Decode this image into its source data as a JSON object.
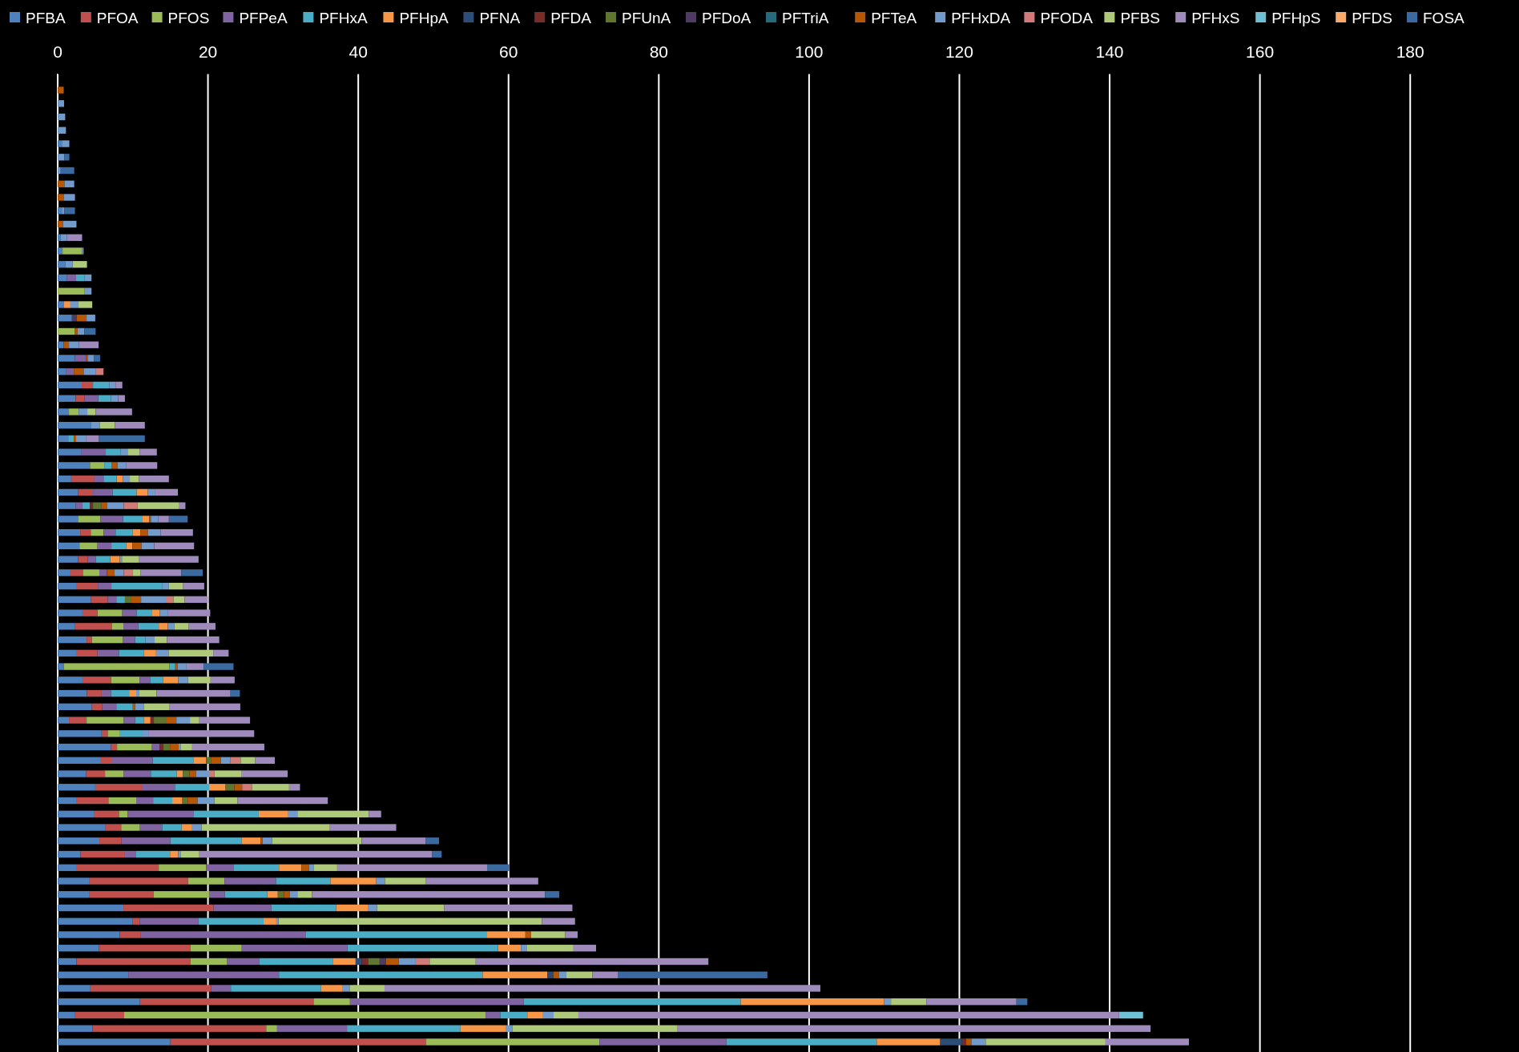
{
  "chart_data": {
    "type": "bar",
    "orientation": "horizontal",
    "stacked": true,
    "grid": "x",
    "legend": "top",
    "tick_labels": "x",
    "categories": [
      null,
      null,
      null,
      null,
      null,
      null,
      null,
      null,
      null,
      null,
      null,
      null,
      null,
      null,
      null,
      null,
      null,
      null,
      null,
      null,
      null,
      null,
      null,
      null,
      null,
      null,
      null,
      null,
      null,
      null,
      null,
      null,
      null,
      null,
      null,
      null,
      null,
      null,
      null,
      null,
      null,
      null,
      null,
      null,
      null,
      null,
      null,
      null,
      null,
      null,
      null,
      null,
      null,
      null,
      null,
      null,
      null,
      null,
      null,
      null,
      null,
      null,
      null,
      null,
      null,
      null,
      null,
      null,
      null,
      null,
      null,
      null
    ],
    "xlim": [
      0,
      190
    ],
    "xticks": [
      0,
      20,
      40,
      60,
      80,
      100,
      120,
      140,
      160,
      180
    ],
    "series": [
      {
        "name": "PFBA",
        "color": "#4f81bd",
        "values": [
          null,
          null,
          null,
          null,
          0.55,
          null,
          null,
          null,
          null,
          0.55,
          null,
          0.4,
          0.65,
          1.0,
          1.2,
          null,
          0.85,
          1.9,
          null,
          0.8,
          2.3,
          1.15,
          3.2,
          2.4,
          1.5,
          4.4,
          1.4,
          3.1,
          4.3,
          1.8,
          2.7,
          2.4,
          2.7,
          3.0,
          2.9,
          2.7,
          1.7,
          2.45,
          4.4,
          3.3,
          2.25,
          3.85,
          2.45,
          0.8,
          3.3,
          3.9,
          4.55,
          1.5,
          5.85,
          7.1,
          5.65,
          3.8,
          5.0,
          2.55,
          4.8,
          6.3,
          5.55,
          3.05,
          2.45,
          4.25,
          4.25,
          8.75,
          10.0,
          8.25,
          5.5,
          2.5,
          9.4,
          4.35,
          10.95,
          2.25,
          4.65,
          15.0
        ]
      },
      {
        "name": "PFOA",
        "color": "#c0504d",
        "values": [
          null,
          null,
          null,
          null,
          null,
          null,
          null,
          null,
          null,
          null,
          null,
          null,
          null,
          null,
          null,
          null,
          null,
          null,
          null,
          null,
          null,
          null,
          1.5,
          1.2,
          null,
          null,
          null,
          null,
          null,
          3.1,
          2.0,
          null,
          null,
          1.4,
          null,
          1.3,
          1.65,
          2.9,
          2.25,
          2.0,
          5.0,
          0.7,
          2.8,
          null,
          3.8,
          1.95,
          1.35,
          2.35,
          0.8,
          0.8,
          1.6,
          2.5,
          6.2,
          4.2,
          3.35,
          2.15,
          2.95,
          5.9,
          11.0,
          13.1,
          8.5,
          12.0,
          0.9,
          2.75,
          12.15,
          15.15,
          null,
          16.05,
          23.1,
          6.6,
          23.1,
          34.05
        ]
      },
      {
        "name": "PFOS",
        "color": "#9bbb59",
        "values": [
          null,
          null,
          null,
          null,
          null,
          null,
          null,
          null,
          null,
          null,
          null,
          null,
          2.6,
          null,
          null,
          3.6,
          null,
          null,
          2.3,
          null,
          null,
          null,
          null,
          null,
          1.3,
          null,
          null,
          null,
          1.9,
          null,
          null,
          null,
          3.0,
          1.7,
          2.4,
          null,
          2.2,
          null,
          null,
          3.3,
          1.5,
          4.1,
          null,
          14.05,
          3.8,
          null,
          null,
          4.95,
          1.65,
          4.65,
          null,
          2.5,
          null,
          3.7,
          1.15,
          2.5,
          null,
          null,
          6.3,
          4.85,
          7.4,
          null,
          null,
          null,
          6.85,
          4.85,
          null,
          null,
          4.85,
          48.1,
          1.45,
          23.05
        ]
      },
      {
        "name": "PFPeA",
        "color": "#8064a2",
        "values": [
          null,
          null,
          null,
          null,
          null,
          null,
          null,
          null,
          null,
          null,
          null,
          null,
          null,
          null,
          1.25,
          null,
          null,
          null,
          null,
          null,
          1.5,
          1.0,
          null,
          1.8,
          null,
          null,
          null,
          3.3,
          null,
          1.2,
          2.6,
          0.9,
          3.0,
          1.6,
          1.85,
          1.1,
          1.0,
          1.8,
          1.15,
          1.9,
          2.0,
          1.65,
          2.9,
          null,
          1.4,
          1.25,
          1.9,
          1.5,
          null,
          1.0,
          5.4,
          3.6,
          4.4,
          2.25,
          8.75,
          2.95,
          6.5,
          1.5,
          3.7,
          6.85,
          2.1,
          7.7,
          7.8,
          22.05,
          14.05,
          4.3,
          20.05,
          2.65,
          23.1,
          1.95,
          9.3,
          16.9
        ]
      },
      {
        "name": "PFHxA",
        "color": "#4bacc6",
        "values": [
          null,
          null,
          null,
          null,
          null,
          null,
          null,
          null,
          null,
          null,
          null,
          null,
          null,
          null,
          1.15,
          null,
          null,
          null,
          null,
          null,
          null,
          null,
          2.15,
          1.7,
          null,
          null,
          0.75,
          2.0,
          0.95,
          1.75,
          3.2,
          1.0,
          2.6,
          2.3,
          2.0,
          1.9,
          null,
          6.8,
          1.15,
          2.0,
          2.7,
          1.4,
          3.3,
          0.8,
          1.75,
          2.4,
          2.2,
          1.15,
          3.0,
          null,
          5.4,
          3.45,
          4.55,
          2.55,
          8.7,
          2.6,
          9.5,
          4.5,
          6.0,
          7.25,
          5.65,
          8.6,
          8.7,
          24.1,
          20.05,
          9.8,
          27.1,
          12.0,
          28.9,
          3.6,
          15.1,
          20.0
        ]
      },
      {
        "name": "PFHpA",
        "color": "#f79646",
        "values": [
          null,
          null,
          null,
          null,
          null,
          null,
          null,
          null,
          null,
          null,
          null,
          null,
          null,
          null,
          null,
          null,
          0.85,
          null,
          null,
          null,
          null,
          null,
          null,
          null,
          null,
          null,
          null,
          null,
          null,
          0.85,
          1.5,
          null,
          0.9,
          1.0,
          0.8,
          1.25,
          null,
          null,
          null,
          1.1,
          1.2,
          null,
          1.65,
          null,
          2.0,
          0.95,
          null,
          0.9,
          null,
          null,
          1.7,
          0.8,
          2.2,
          1.35,
          3.85,
          1.4,
          2.5,
          1.1,
          3.0,
          6.05,
          1.4,
          4.3,
          1.7,
          5.1,
          3.05,
          3.05,
          8.6,
          2.8,
          19.05,
          2.1,
          6.0,
          8.45
        ]
      },
      {
        "name": "PFNA",
        "color": "#2c4d75",
        "values": [
          null,
          null,
          null,
          null,
          null,
          null,
          null,
          null,
          null,
          null,
          null,
          null,
          null,
          null,
          null,
          null,
          null,
          null,
          null,
          null,
          null,
          null,
          null,
          null,
          null,
          null,
          null,
          null,
          null,
          null,
          null,
          null,
          null,
          null,
          null,
          null,
          null,
          null,
          null,
          null,
          null,
          null,
          null,
          null,
          null,
          null,
          null,
          null,
          null,
          null,
          null,
          null,
          null,
          null,
          null,
          null,
          null,
          null,
          null,
          null,
          null,
          null,
          null,
          null,
          null,
          0.8,
          0.8,
          null,
          null,
          null,
          null,
          2.9
        ]
      },
      {
        "name": "PFDA",
        "color": "#772c2a",
        "values": [
          null,
          null,
          null,
          null,
          null,
          null,
          null,
          null,
          null,
          null,
          null,
          null,
          null,
          null,
          null,
          null,
          null,
          null,
          null,
          null,
          null,
          null,
          null,
          null,
          null,
          null,
          null,
          null,
          null,
          null,
          null,
          0.4,
          null,
          null,
          null,
          null,
          null,
          null,
          null,
          null,
          null,
          null,
          null,
          null,
          null,
          null,
          null,
          0.45,
          null,
          0.5,
          null,
          null,
          null,
          null,
          null,
          null,
          null,
          null,
          null,
          null,
          null,
          null,
          null,
          null,
          null,
          0.85,
          null,
          null,
          null,
          null,
          null,
          0.55
        ]
      },
      {
        "name": "PFUnA",
        "color": "#5f7530",
        "values": [
          null,
          null,
          null,
          null,
          null,
          null,
          null,
          null,
          null,
          null,
          null,
          null,
          null,
          null,
          null,
          null,
          null,
          null,
          null,
          null,
          null,
          null,
          null,
          null,
          null,
          null,
          null,
          null,
          null,
          null,
          null,
          1.15,
          null,
          null,
          null,
          null,
          null,
          null,
          0.85,
          null,
          null,
          null,
          null,
          null,
          null,
          null,
          null,
          1.7,
          null,
          0.9,
          0.7,
          0.9,
          1.15,
          0.7,
          null,
          null,
          null,
          null,
          null,
          null,
          0.8,
          null,
          null,
          null,
          null,
          1.55,
          null,
          null,
          null,
          null,
          null,
          null
        ]
      },
      {
        "name": "PFDoA",
        "color": "#4d3b62",
        "values": [
          null,
          null,
          null,
          null,
          null,
          null,
          null,
          null,
          null,
          null,
          null,
          null,
          null,
          null,
          null,
          null,
          null,
          0.65,
          null,
          null,
          null,
          null,
          null,
          null,
          null,
          null,
          null,
          null,
          null,
          null,
          null,
          null,
          null,
          null,
          null,
          null,
          null,
          null,
          null,
          null,
          null,
          null,
          null,
          null,
          null,
          null,
          null,
          null,
          null,
          null,
          null,
          null,
          null,
          null,
          null,
          null,
          null,
          null,
          null,
          null,
          null,
          null,
          null,
          null,
          null,
          0.85,
          null,
          null,
          null,
          null,
          null,
          null
        ]
      },
      {
        "name": "PFTriA",
        "color": "#276a7c",
        "values": [
          null,
          null,
          null,
          null,
          null,
          null,
          null,
          null,
          null,
          null,
          null,
          null,
          null,
          null,
          null,
          null,
          null,
          null,
          null,
          null,
          null,
          null,
          null,
          null,
          null,
          null,
          null,
          null,
          null,
          null,
          null,
          null,
          null,
          null,
          null,
          null,
          null,
          null,
          null,
          null,
          null,
          null,
          null,
          null,
          null,
          null,
          null,
          null,
          null,
          null,
          null,
          null,
          null,
          null,
          null,
          null,
          null,
          null,
          null,
          null,
          null,
          null,
          null,
          null,
          null,
          null,
          null,
          null,
          null,
          null,
          null,
          null
        ]
      },
      {
        "name": "PFTeA",
        "color": "#b65708",
        "values": [
          0.8,
          null,
          null,
          null,
          null,
          null,
          null,
          0.9,
          0.8,
          null,
          0.7,
          null,
          null,
          null,
          null,
          null,
          null,
          1.3,
          0.35,
          0.7,
          0.25,
          1.3,
          null,
          null,
          null,
          null,
          0.3,
          null,
          0.8,
          null,
          null,
          0.7,
          0.2,
          1.0,
          1.2,
          null,
          1.0,
          null,
          1.3,
          null,
          null,
          null,
          null,
          0.3,
          null,
          null,
          0.3,
          1.3,
          null,
          1.15,
          1.25,
          0.85,
          1.05,
          1.3,
          null,
          null,
          0.25,
          null,
          1.0,
          null,
          0.8,
          null,
          null,
          0.75,
          null,
          1.7,
          0.75,
          null,
          null,
          null,
          null,
          0.7
        ]
      },
      {
        "name": "PFHxDA",
        "color": "#729aca",
        "values": [
          null,
          0.85,
          1.0,
          1.1,
          1.0,
          0.9,
          0.4,
          1.3,
          1.5,
          0.35,
          1.8,
          0.85,
          0.2,
          1.0,
          0.9,
          0.9,
          1.0,
          1.15,
          0.9,
          1.35,
          0.8,
          1.65,
          0.85,
          0.95,
          1.15,
          1.2,
          1.3,
          0.9,
          1.2,
          0.9,
          1.0,
          2.25,
          1.0,
          1.7,
          1.7,
          0.3,
          1.25,
          0.85,
          3.4,
          1.1,
          0.9,
          1.2,
          1.65,
          1.2,
          1.3,
          0.35,
          1.15,
          1.8,
          0.85,
          0.25,
          1.3,
          1.75,
          null,
          2.25,
          1.3,
          1.25,
          1.3,
          0.3,
          0.6,
          1.2,
          1.0,
          1.15,
          0.3,
          null,
          0.75,
          2.25,
          1.0,
          1.0,
          0.95,
          1.4,
          0.9,
          1.9
        ]
      },
      {
        "name": "PFODA",
        "color": "#d07b78",
        "values": [
          null,
          null,
          null,
          null,
          null,
          null,
          null,
          null,
          null,
          null,
          null,
          null,
          null,
          null,
          null,
          null,
          null,
          null,
          null,
          null,
          null,
          1.0,
          null,
          null,
          null,
          null,
          null,
          null,
          null,
          null,
          null,
          1.8,
          null,
          null,
          null,
          null,
          1.15,
          null,
          0.9,
          null,
          null,
          null,
          null,
          null,
          null,
          null,
          null,
          null,
          null,
          null,
          1.35,
          0.7,
          1.3,
          null,
          null,
          null,
          null,
          null,
          null,
          null,
          null,
          null,
          null,
          null,
          null,
          1.85,
          null,
          null,
          null,
          null,
          null,
          null
        ]
      },
      {
        "name": "PFBS",
        "color": "#afc97a",
        "values": [
          null,
          null,
          null,
          null,
          null,
          null,
          null,
          null,
          null,
          null,
          null,
          null,
          null,
          1.9,
          null,
          null,
          1.9,
          null,
          null,
          null,
          null,
          null,
          null,
          null,
          1.1,
          2.0,
          null,
          1.6,
          null,
          1.2,
          null,
          5.5,
          null,
          null,
          null,
          2.3,
          1.1,
          1.9,
          1.5,
          null,
          1.9,
          1.65,
          5.95,
          null,
          3.0,
          2.35,
          3.45,
          1.25,
          null,
          1.55,
          1.95,
          3.65,
          4.95,
          3.1,
          9.5,
          17.0,
          11.9,
          2.5,
          3.15,
          5.4,
          1.95,
          8.95,
          35.05,
          4.55,
          6.25,
          6.05,
          3.45,
          4.65,
          4.7,
          3.3,
          22.0,
          15.95
        ]
      },
      {
        "name": "PFHxS",
        "color": "#9f8bbb",
        "values": [
          null,
          null,
          null,
          null,
          null,
          null,
          null,
          null,
          null,
          null,
          null,
          2.0,
          null,
          null,
          null,
          null,
          null,
          null,
          null,
          2.6,
          null,
          null,
          0.9,
          0.9,
          4.85,
          4.0,
          1.75,
          2.3,
          4.1,
          4.0,
          3.0,
          0.9,
          1.4,
          4.3,
          5.3,
          7.9,
          5.4,
          2.8,
          3.1,
          5.6,
          3.55,
          6.95,
          2.05,
          2.25,
          3.2,
          9.85,
          9.4,
          6.75,
          14.0,
          9.6,
          2.6,
          6.1,
          1.45,
          12.0,
          1.65,
          8.9,
          8.5,
          31.0,
          19.95,
          15.0,
          31.0,
          17.05,
          4.4,
          1.65,
          3.0,
          31.05,
          3.45,
          58.0,
          12.0,
          71.95,
          62.95,
          11.1
        ]
      },
      {
        "name": "PFHpS",
        "color": "#6fbfd5",
        "values": [
          null,
          null,
          null,
          null,
          null,
          null,
          null,
          null,
          null,
          null,
          null,
          null,
          null,
          null,
          null,
          null,
          null,
          null,
          null,
          null,
          null,
          null,
          null,
          null,
          null,
          null,
          null,
          null,
          null,
          null,
          null,
          null,
          null,
          null,
          null,
          null,
          null,
          null,
          null,
          null,
          null,
          null,
          null,
          null,
          null,
          null,
          null,
          null,
          null,
          null,
          null,
          null,
          null,
          null,
          null,
          null,
          null,
          null,
          null,
          null,
          null,
          null,
          null,
          null,
          null,
          null,
          null,
          null,
          null,
          3.2,
          null,
          null
        ]
      },
      {
        "name": "PFDS",
        "color": "#f9ab6b",
        "values": [
          null,
          null,
          null,
          null,
          null,
          null,
          null,
          null,
          null,
          null,
          null,
          null,
          null,
          null,
          null,
          null,
          null,
          null,
          null,
          null,
          null,
          null,
          null,
          null,
          null,
          null,
          null,
          null,
          null,
          null,
          null,
          null,
          null,
          null,
          null,
          null,
          null,
          null,
          null,
          null,
          null,
          null,
          null,
          null,
          null,
          null,
          null,
          null,
          null,
          null,
          null,
          null,
          null,
          null,
          null,
          null,
          null,
          null,
          null,
          null,
          null,
          null,
          null,
          null,
          null,
          null,
          null,
          null,
          null,
          null,
          null,
          null
        ]
      },
      {
        "name": "FOSA",
        "color": "#3a6aa0",
        "values": [
          null,
          null,
          null,
          null,
          null,
          0.65,
          1.8,
          null,
          null,
          1.4,
          null,
          null,
          null,
          null,
          null,
          null,
          null,
          null,
          1.5,
          null,
          0.8,
          null,
          null,
          null,
          null,
          null,
          6.1,
          null,
          null,
          null,
          null,
          null,
          2.5,
          null,
          null,
          null,
          2.85,
          null,
          null,
          null,
          null,
          null,
          null,
          4.0,
          null,
          1.25,
          null,
          null,
          null,
          null,
          null,
          null,
          null,
          null,
          null,
          null,
          1.8,
          1.25,
          2.95,
          null,
          1.9,
          null,
          null,
          null,
          null,
          null,
          19.85,
          null,
          1.45,
          null,
          null,
          null
        ]
      }
    ]
  }
}
